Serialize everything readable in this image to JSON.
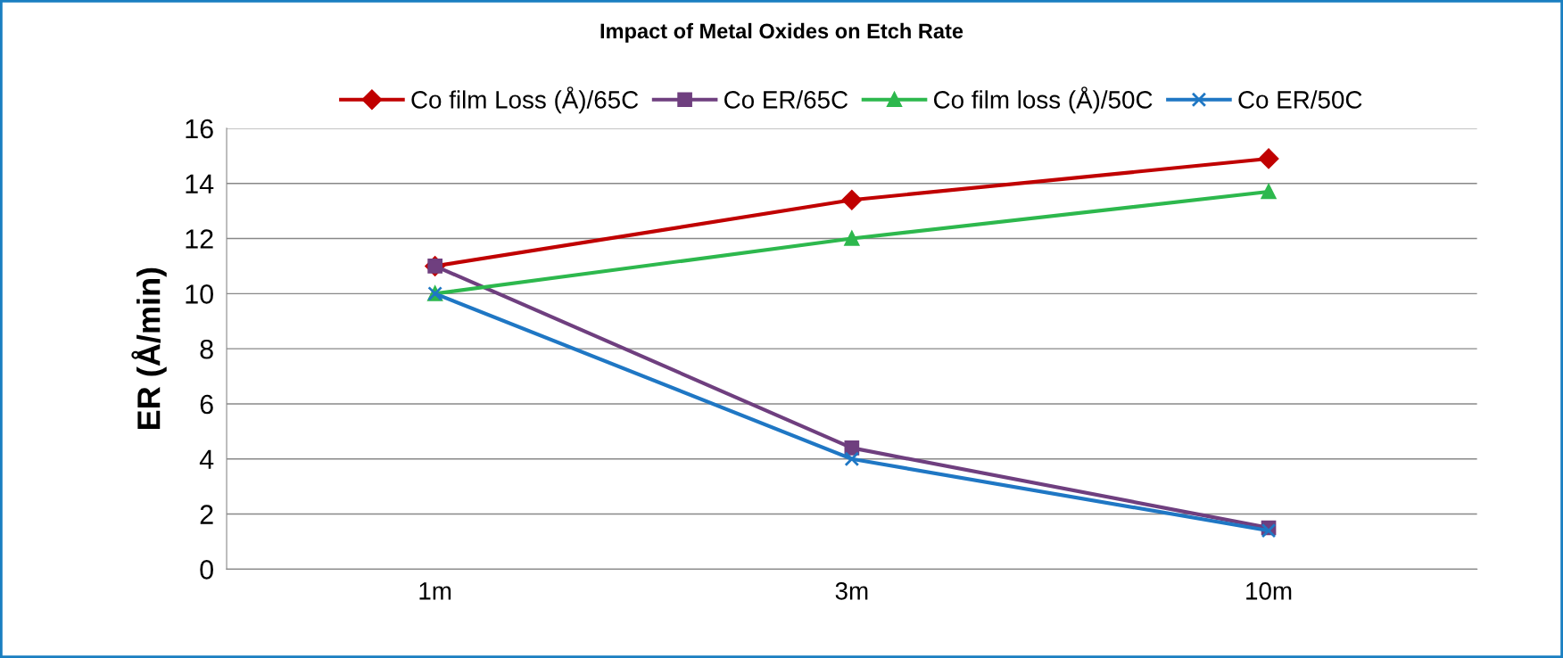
{
  "chart_data": {
    "type": "line",
    "title": "Impact of Metal Oxides on Etch Rate",
    "ylabel": "ER (Å/min)",
    "categories": [
      "1m",
      "3m",
      "10m"
    ],
    "series": [
      {
        "name": "Co film Loss (Å)/65C",
        "color": "#c00000",
        "marker": "diamond",
        "values": [
          11,
          13.4,
          14.9
        ]
      },
      {
        "name": "Co ER/65C",
        "color": "#6f3f7f",
        "marker": "square",
        "values": [
          11,
          4.4,
          1.5
        ]
      },
      {
        "name": "Co film loss (Å)/50C",
        "color": "#2db84d",
        "marker": "triangle",
        "values": [
          10,
          12,
          13.7
        ]
      },
      {
        "name": "Co ER/50C",
        "color": "#1f77c4",
        "marker": "cross",
        "values": [
          10,
          4,
          1.4
        ]
      }
    ],
    "ylim": [
      0,
      16
    ],
    "yticks": [
      0,
      2,
      4,
      6,
      8,
      10,
      12,
      14,
      16
    ],
    "grid": "y",
    "legend": "top"
  }
}
